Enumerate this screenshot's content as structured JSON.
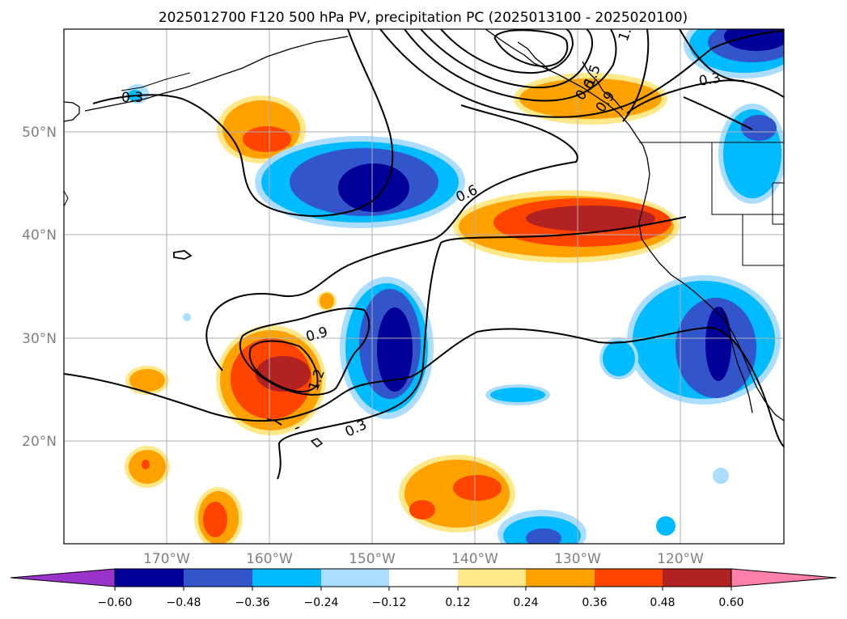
{
  "title": "2025012700 F120 500 hPa PV, precipitation PC (2025013100 - 2025020100)",
  "map": {
    "lat_labels": [
      "50°N",
      "40°N",
      "30°N",
      "20°N"
    ],
    "lon_labels": [
      "170°W",
      "160°W",
      "150°W",
      "140°W",
      "130°W",
      "120°W"
    ],
    "grid": true,
    "contour_labels": [
      "0.3",
      "0.3",
      "0.6",
      "0.9",
      "1.2",
      "0.3",
      "1.5",
      "1.",
      "0.9",
      "0.6"
    ]
  },
  "colorbar": {
    "ticks": [
      "−0.60",
      "−0.48",
      "−0.36",
      "−0.24",
      "−0.12",
      "0.12",
      "0.24",
      "0.36",
      "0.48",
      "0.60"
    ],
    "colors": [
      "#9933cc",
      "#000099",
      "#3355cc",
      "#00bbff",
      "#aaddff",
      "#ffffff",
      "#ffe88a",
      "#ffa200",
      "#ff4400",
      "#b22222",
      "#ff80a8"
    ],
    "extend": "both"
  },
  "colors": {
    "grid": "#b0b0b0",
    "coast": "#000000",
    "tick_label": "#808080"
  }
}
